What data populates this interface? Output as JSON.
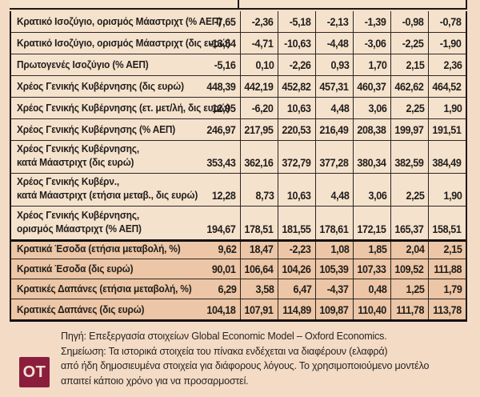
{
  "table": {
    "rows": [
      {
        "label": "Κρατικό Ισοζύγιο, ορισμός Μάαστριχτ (% ΑΕΠ)",
        "values": [
          "-7,65",
          "-2,36",
          "-5,18",
          "-2,13",
          "-1,39",
          "-0,98",
          "-0,78"
        ]
      },
      {
        "label": "Κρατικό Ισοζύγιο, ορισμός Μάαστριχτ (δις ευρώ)",
        "values": [
          "-13,54",
          "-4,71",
          "-10,63",
          "-4,48",
          "-3,06",
          "-2,25",
          "-1,90"
        ]
      },
      {
        "label": "Πρωτογενές Ισοζύγιο (% ΑΕΠ)",
        "values": [
          "-5,16",
          "0,10",
          "-2,26",
          "0,93",
          "1,70",
          "2,15",
          "2,36"
        ]
      },
      {
        "label": "Χρέος Γενικής Κυβέρνησης (δις ευρώ)",
        "values": [
          "448,39",
          "442,19",
          "452,82",
          "457,31",
          "460,37",
          "462,62",
          "464,52"
        ]
      },
      {
        "label": "Χρέος Γενικής Κυβέρνησης (ετ. μετ/λή, δις ευρώ)",
        "values": [
          "12,95",
          "-6,20",
          "10,63",
          "4,48",
          "3,06",
          "2,25",
          "1,90"
        ]
      },
      {
        "label": "Χρέος Γενικής Κυβέρνησης (% ΑΕΠ)",
        "values": [
          "246,97",
          "217,95",
          "220,53",
          "216,49",
          "208,38",
          "199,97",
          "191,51"
        ]
      },
      {
        "label": "Χρέος Γενικής Κυβέρνησης,\nκατά Μάαστριχτ (δις ευρώ)",
        "values": [
          "353,43",
          "362,16",
          "372,79",
          "377,28",
          "380,34",
          "382,59",
          "384,49"
        ]
      },
      {
        "label": "Χρέος Γενικής Κυβέρν.,\nκατά Μάαστριχτ (ετήσια μεταβ., δις ευρώ)",
        "values": [
          "12,28",
          "8,73",
          "10,63",
          "4,48",
          "3,06",
          "2,25",
          "1,90"
        ]
      },
      {
        "label": "Χρέος Γενικής Κυβέρνησης,\nορισμός Μάαστριχτ (% ΑΕΠ)",
        "values": [
          "194,67",
          "178,51",
          "181,55",
          "178,61",
          "172,15",
          "165,37",
          "158,51"
        ]
      },
      {
        "label": "Κρατικά Έσοδα (ετήσια μεταβολή, %)",
        "values": [
          "9,62",
          "18,47",
          "-2,23",
          "1,08",
          "1,85",
          "2,04",
          "2,15"
        ]
      },
      {
        "label": "Κρατικά Έσοδα (δις ευρώ)",
        "values": [
          "90,01",
          "106,64",
          "104,26",
          "105,39",
          "107,33",
          "109,52",
          "111,88"
        ]
      },
      {
        "label": "Κρατικές Δαπάνες (ετήσια μεταβολή, %)",
        "values": [
          "6,29",
          "3,58",
          "6,47",
          "-4,37",
          "0,48",
          "1,25",
          "1,79"
        ]
      },
      {
        "label": "Κρατικές Δαπάνες (δις ευρώ)",
        "values": [
          "104,18",
          "107,91",
          "114,89",
          "109,87",
          "110,40",
          "111,78",
          "113,78"
        ]
      }
    ]
  },
  "footer": {
    "logo_text": "OT",
    "source_line": "Πηγή: Επεξεργασία στοιχείων Global Economic Model – Oxford Economics.",
    "note_line1": "Σημείωση: Τα ιστορικά στοιχεία του πίνακα ενδέχεται να διαφέρουν (ελαφρά)",
    "note_line2": "από ήδη δημοσιευμένα στοιχεία για διάφορους λόγους. Το χρησιμοποιούμενο μοντέλο",
    "note_line3": "απαιτεί κάποιο χρόνο για να προσαρμοστεί."
  },
  "colors": {
    "cell_light": "#f5e2cd",
    "cell_dark": "#ecc6a6",
    "page_bg": "#f3dbc6",
    "grid_line": "#2a2623",
    "logo_bg": "#8c1e3d",
    "logo_text": "#f3e2d2"
  },
  "chart_data": {
    "type": "table",
    "title": "",
    "columns": 7,
    "column_headers_visible": false,
    "rows": [
      {
        "name": "Κρατικό Ισοζύγιο, ορισμός Μάαστριχτ (% ΑΕΠ)",
        "values": [
          -7.65,
          -2.36,
          -5.18,
          -2.13,
          -1.39,
          -0.98,
          -0.78
        ]
      },
      {
        "name": "Κρατικό Ισοζύγιο, ορισμός Μάαστριχτ (δις ευρώ)",
        "values": [
          -13.54,
          -4.71,
          -10.63,
          -4.48,
          -3.06,
          -2.25,
          -1.9
        ]
      },
      {
        "name": "Πρωτογενές Ισοζύγιο (% ΑΕΠ)",
        "values": [
          -5.16,
          0.1,
          -2.26,
          0.93,
          1.7,
          2.15,
          2.36
        ]
      },
      {
        "name": "Χρέος Γενικής Κυβέρνησης (δις ευρώ)",
        "values": [
          448.39,
          442.19,
          452.82,
          457.31,
          460.37,
          462.62,
          464.52
        ]
      },
      {
        "name": "Χρέος Γενικής Κυβέρνησης (ετ. μετ/λή, δις ευρώ)",
        "values": [
          12.95,
          -6.2,
          10.63,
          4.48,
          3.06,
          2.25,
          1.9
        ]
      },
      {
        "name": "Χρέος Γενικής Κυβέρνησης (% ΑΕΠ)",
        "values": [
          246.97,
          217.95,
          220.53,
          216.49,
          208.38,
          199.97,
          191.51
        ]
      },
      {
        "name": "Χρέος Γενικής Κυβέρνησης, κατά Μάαστριχτ (δις ευρώ)",
        "values": [
          353.43,
          362.16,
          372.79,
          377.28,
          380.34,
          382.59,
          384.49
        ]
      },
      {
        "name": "Χρέος Γενικής Κυβέρν., κατά Μάαστριχτ (ετήσια μεταβ., δις ευρώ)",
        "values": [
          12.28,
          8.73,
          10.63,
          4.48,
          3.06,
          2.25,
          1.9
        ]
      },
      {
        "name": "Χρέος Γενικής Κυβέρνησης, ορισμός Μάαστριχτ (% ΑΕΠ)",
        "values": [
          194.67,
          178.51,
          181.55,
          178.61,
          172.15,
          165.37,
          158.51
        ]
      },
      {
        "name": "Κρατικά Έσοδα (ετήσια μεταβολή, %)",
        "values": [
          9.62,
          18.47,
          -2.23,
          1.08,
          1.85,
          2.04,
          2.15
        ]
      },
      {
        "name": "Κρατικά Έσοδα (δις ευρώ)",
        "values": [
          90.01,
          106.64,
          104.26,
          105.39,
          107.33,
          109.52,
          111.88
        ]
      },
      {
        "name": "Κρατικές Δαπάνες (ετήσια μεταβολή, %)",
        "values": [
          6.29,
          3.58,
          6.47,
          -4.37,
          0.48,
          1.25,
          1.79
        ]
      },
      {
        "name": "Κρατικές Δαπάνες (δις ευρώ)",
        "values": [
          104.18,
          107.91,
          114.89,
          109.87,
          110.4,
          111.78,
          113.78
        ]
      }
    ]
  }
}
